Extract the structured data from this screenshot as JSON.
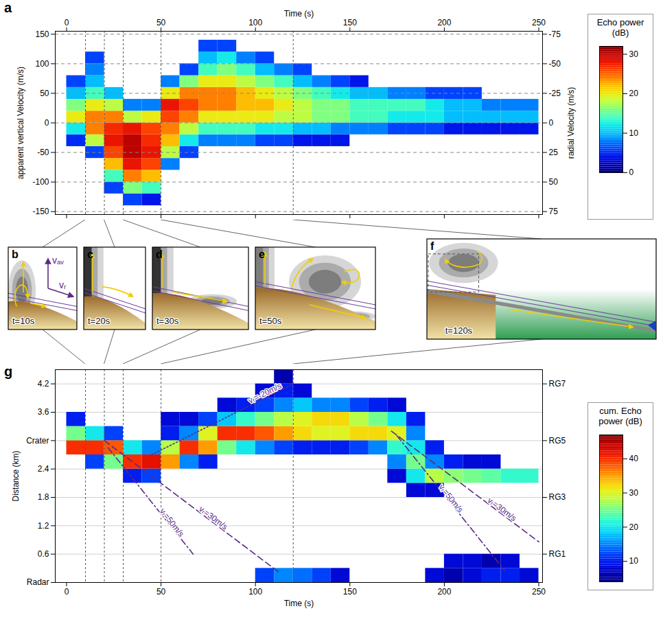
{
  "chart_data": [
    {
      "panel": "a",
      "type": "heatmap",
      "x_label": "Time (s)",
      "y_label": "apparent vertical Velocity (m/s)",
      "y2_label": "radial Velocity (m/s)",
      "xlim": [
        -6,
        252
      ],
      "xticks": [
        0,
        50,
        100,
        150,
        200,
        250
      ],
      "ylim": [
        -155,
        155
      ],
      "yticks": [
        -150,
        -100,
        -50,
        0,
        50,
        100,
        150
      ],
      "y2lim": [
        77.5,
        -77.5
      ],
      "y2ticks": [
        -75,
        -50,
        -25,
        0,
        25,
        50,
        75
      ],
      "grid": true,
      "event_times": [
        10,
        20,
        30,
        50,
        120
      ],
      "x_edges": [
        0,
        10,
        20,
        30,
        40,
        50,
        60,
        70,
        80,
        90,
        100,
        110,
        120,
        130,
        140,
        150,
        160,
        170,
        180,
        190,
        200,
        210,
        220,
        230,
        240,
        250
      ],
      "y_edges": [
        -140,
        -120,
        -100,
        -80,
        -60,
        -40,
        -20,
        0,
        20,
        40,
        60,
        80,
        100,
        120,
        140
      ],
      "cells": [
        [
          null,
          null,
          null,
          null,
          null,
          5,
          12,
          20,
          16,
          10,
          6,
          null,
          null,
          null
        ],
        [
          null,
          null,
          null,
          null,
          6,
          18,
          24,
          24,
          20,
          14,
          10,
          8,
          6,
          null
        ],
        [
          null,
          6,
          14,
          22,
          26,
          28,
          27,
          24,
          18,
          10,
          null,
          null,
          null,
          null
        ],
        [
          6,
          16,
          24,
          28,
          30,
          30,
          28,
          18,
          8,
          null,
          null,
          null,
          null,
          null
        ],
        [
          4,
          14,
          22,
          26,
          28,
          27,
          26,
          20,
          8,
          null,
          null,
          null,
          null,
          null
        ],
        [
          null,
          null,
          null,
          8,
          18,
          22,
          24,
          26,
          28,
          20,
          8,
          null,
          null,
          null
        ],
        [
          null,
          null,
          null,
          null,
          6,
          12,
          18,
          24,
          26,
          24,
          16,
          6,
          null,
          null
        ],
        [
          null,
          null,
          null,
          null,
          null,
          8,
          14,
          20,
          24,
          24,
          20,
          14,
          10,
          6
        ],
        [
          null,
          null,
          null,
          null,
          null,
          8,
          14,
          20,
          24,
          24,
          20,
          16,
          12,
          6
        ],
        [
          null,
          null,
          null,
          null,
          null,
          8,
          14,
          20,
          22,
          22,
          18,
          14,
          8,
          null
        ],
        [
          null,
          null,
          null,
          null,
          null,
          6,
          12,
          20,
          22,
          20,
          16,
          10,
          6,
          null
        ],
        [
          null,
          null,
          null,
          null,
          null,
          6,
          12,
          18,
          20,
          18,
          14,
          8,
          null,
          null
        ],
        [
          null,
          null,
          null,
          null,
          null,
          4,
          10,
          18,
          18,
          16,
          10,
          6,
          null,
          null
        ],
        [
          null,
          null,
          null,
          null,
          null,
          4,
          10,
          16,
          16,
          14,
          8,
          null,
          null,
          null
        ],
        [
          null,
          null,
          null,
          null,
          null,
          4,
          8,
          16,
          16,
          12,
          6,
          null,
          null,
          null
        ],
        [
          null,
          null,
          null,
          null,
          null,
          null,
          8,
          14,
          14,
          10,
          4,
          null,
          null,
          null
        ],
        [
          null,
          null,
          null,
          null,
          null,
          null,
          8,
          14,
          14,
          10,
          null,
          null,
          null,
          null
        ],
        [
          null,
          null,
          null,
          null,
          null,
          null,
          6,
          12,
          14,
          8,
          null,
          null,
          null,
          null
        ],
        [
          null,
          null,
          null,
          null,
          null,
          null,
          6,
          12,
          14,
          8,
          null,
          null,
          null,
          null
        ],
        [
          null,
          null,
          null,
          null,
          null,
          null,
          6,
          12,
          12,
          6,
          null,
          null,
          null,
          null
        ],
        [
          null,
          null,
          null,
          null,
          null,
          null,
          4,
          10,
          10,
          6,
          null,
          null,
          null,
          null
        ],
        [
          null,
          null,
          null,
          null,
          null,
          null,
          4,
          10,
          10,
          6,
          null,
          null,
          null,
          null
        ],
        [
          null,
          null,
          null,
          null,
          null,
          null,
          4,
          10,
          8,
          null,
          null,
          null,
          null,
          null
        ],
        [
          null,
          null,
          null,
          null,
          null,
          null,
          4,
          10,
          8,
          null,
          null,
          null,
          null,
          null
        ],
        [
          null,
          null,
          null,
          null,
          null,
          null,
          4,
          10,
          8,
          null,
          null,
          null,
          null,
          null
        ]
      ],
      "colorbar": {
        "label": "Echo power (dB)",
        "range": [
          0,
          32
        ],
        "ticks": [
          0,
          10,
          20,
          30
        ]
      }
    },
    {
      "panel": "g",
      "type": "heatmap",
      "x_label": "Time (s)",
      "y_label": "Distance (km)",
      "xlim": [
        -6,
        252
      ],
      "xticks": [
        0,
        50,
        100,
        150,
        200,
        250
      ],
      "ylim": [
        0,
        4.5
      ],
      "yticks": [
        {
          "value": 0,
          "label": "Radar"
        },
        0.6,
        1.2,
        1.8,
        2.4,
        {
          "value": 3,
          "label": "Crater"
        },
        3.6,
        4.2
      ],
      "y2lim": [
        0,
        4.5
      ],
      "y2ticks": [
        {
          "value": 0.6,
          "label": "RG1"
        },
        {
          "value": 1.8,
          "label": "RG3"
        },
        {
          "value": 3,
          "label": "RG5"
        },
        {
          "value": 4.2,
          "label": "RG7"
        }
      ],
      "grid": true,
      "event_times": [
        10,
        20,
        30,
        50,
        120
      ],
      "x_edges": [
        0,
        10,
        20,
        30,
        40,
        50,
        60,
        70,
        80,
        90,
        100,
        110,
        120,
        130,
        140,
        150,
        160,
        170,
        180,
        190,
        200,
        210,
        220,
        230,
        240,
        250
      ],
      "y_edges": [
        0,
        0.3,
        0.6,
        0.9,
        1.2,
        1.5,
        1.8,
        2.1,
        2.4,
        2.7,
        3,
        3.3,
        3.6,
        3.9,
        4.2,
        4.5
      ],
      "cells": [
        [
          null,
          null,
          null,
          null,
          null,
          null,
          null,
          null,
          null,
          40,
          25,
          10,
          null,
          null,
          null
        ],
        [
          null,
          null,
          null,
          null,
          null,
          null,
          null,
          null,
          12,
          40,
          20,
          null,
          null,
          null,
          null
        ],
        [
          null,
          null,
          null,
          null,
          null,
          null,
          null,
          null,
          25,
          38,
          12,
          null,
          null,
          null,
          null
        ],
        [
          null,
          null,
          null,
          null,
          null,
          null,
          null,
          10,
          40,
          20,
          null,
          null,
          null,
          null,
          null
        ],
        [
          null,
          null,
          null,
          null,
          null,
          null,
          null,
          12,
          42,
          15,
          null,
          null,
          null,
          null,
          null
        ],
        [
          null,
          null,
          null,
          null,
          null,
          null,
          null,
          null,
          35,
          28,
          10,
          8,
          null,
          null,
          null
        ],
        [
          null,
          null,
          null,
          null,
          null,
          null,
          null,
          null,
          15,
          40,
          15,
          8,
          null,
          null,
          null
        ],
        [
          null,
          null,
          null,
          null,
          null,
          null,
          null,
          null,
          10,
          35,
          30,
          12,
          null,
          null,
          null
        ],
        [
          null,
          null,
          null,
          null,
          null,
          null,
          null,
          null,
          null,
          25,
          40,
          18,
          8,
          null,
          null
        ],
        [
          null,
          null,
          null,
          null,
          null,
          null,
          null,
          null,
          null,
          20,
          40,
          22,
          10,
          null,
          null
        ],
        [
          12,
          null,
          null,
          null,
          null,
          null,
          null,
          null,
          null,
          15,
          38,
          25,
          12,
          8,
          null
        ],
        [
          15,
          null,
          null,
          null,
          null,
          null,
          null,
          null,
          null,
          12,
          35,
          28,
          15,
          10,
          6
        ],
        [
          14,
          null,
          null,
          null,
          null,
          null,
          null,
          null,
          null,
          10,
          32,
          30,
          18,
          8,
          null
        ],
        [
          12,
          null,
          null,
          null,
          null,
          null,
          null,
          null,
          null,
          10,
          30,
          32,
          15,
          null,
          null
        ],
        [
          8,
          null,
          null,
          null,
          null,
          null,
          null,
          null,
          null,
          10,
          30,
          32,
          15,
          null,
          null
        ],
        [
          null,
          null,
          null,
          null,
          null,
          null,
          null,
          null,
          null,
          12,
          32,
          28,
          12,
          null,
          null
        ],
        [
          null,
          null,
          null,
          null,
          null,
          null,
          null,
          null,
          null,
          15,
          32,
          25,
          10,
          null,
          null
        ],
        [
          null,
          null,
          null,
          null,
          null,
          null,
          null,
          8,
          15,
          22,
          30,
          20,
          8,
          null,
          null
        ],
        [
          null,
          null,
          null,
          null,
          null,
          null,
          8,
          20,
          25,
          20,
          15,
          10,
          null,
          null,
          null
        ],
        [
          8,
          null,
          null,
          null,
          null,
          null,
          8,
          28,
          15,
          10,
          null,
          null,
          null,
          null,
          null
        ],
        [
          6,
          8,
          null,
          null,
          null,
          null,
          null,
          26,
          10,
          null,
          null,
          null,
          null,
          null,
          null
        ],
        [
          8,
          8,
          null,
          null,
          null,
          null,
          null,
          25,
          8,
          null,
          null,
          null,
          null,
          null,
          null
        ],
        [
          10,
          6,
          null,
          null,
          null,
          null,
          null,
          24,
          8,
          null,
          null,
          null,
          null,
          null,
          null
        ],
        [
          10,
          8,
          null,
          null,
          null,
          null,
          null,
          22,
          null,
          null,
          null,
          null,
          null,
          null,
          null
        ],
        [
          8,
          null,
          null,
          null,
          null,
          null,
          null,
          22,
          null,
          null,
          null,
          null,
          null,
          null,
          null
        ]
      ],
      "lines": [
        {
          "label": "vᵣ=50m/s",
          "x": [
            22,
            67
          ],
          "y": [
            2.85,
            0.6
          ],
          "line_style": "dashdot",
          "color": "#5b2a86"
        },
        {
          "label": "vᵣ=30m/s",
          "x": [
            20,
            113
          ],
          "y": [
            3.0,
            0.2
          ],
          "line_style": "dashed",
          "color": "#5b2a86"
        },
        {
          "label": "vᵣ=-20m/s",
          "x": [
            45,
            120
          ],
          "y": [
            2.7,
            4.2
          ],
          "line_style": "dotted",
          "color": "#5b2a86"
        },
        {
          "label": "vᵣ=50m/s",
          "x": [
            175,
            232
          ],
          "y": [
            3.1,
            0.25
          ],
          "line_style": "dashdot",
          "color": "#5b2a86"
        },
        {
          "label": "vᵣ=30m/s",
          "x": [
            172,
            250
          ],
          "y": [
            3.2,
            0.86
          ],
          "line_style": "dashed",
          "color": "#5b2a86"
        }
      ],
      "colorbar": {
        "label": "cum. Echo power (dB)",
        "range": [
          4,
          47
        ],
        "ticks": [
          10,
          20,
          30,
          40
        ]
      }
    }
  ],
  "schematics": {
    "panels": [
      {
        "label": "b",
        "caption": "t=10s"
      },
      {
        "label": "c",
        "caption": "t=20s"
      },
      {
        "label": "d",
        "caption": "t=30s"
      },
      {
        "label": "e",
        "caption": "t=50s"
      },
      {
        "label": "f",
        "caption": "t=120s"
      }
    ],
    "velocity_labels": [
      "vₐᵥ",
      "vᵣ"
    ]
  }
}
